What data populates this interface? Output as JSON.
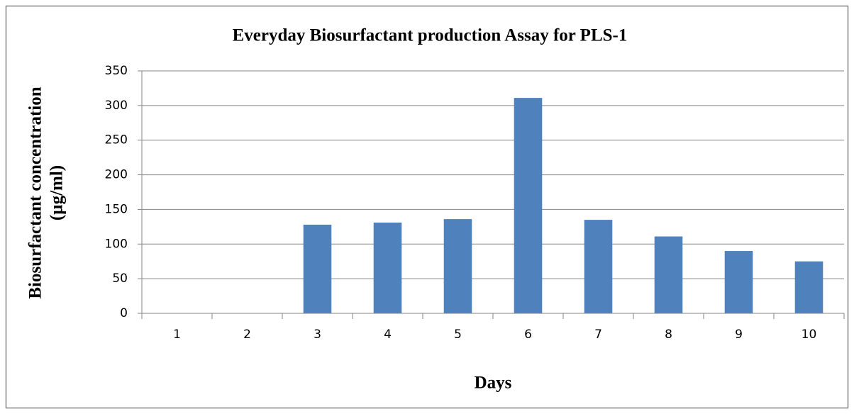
{
  "chart_data": {
    "type": "bar",
    "title": "Everyday Biosurfactant production Assay for PLS-1",
    "x_label": "Days",
    "y_label": [
      "Biosurfactant concentration",
      "(µg/ml)"
    ],
    "categories": [
      "1",
      "2",
      "3",
      "4",
      "5",
      "6",
      "7",
      "8",
      "9",
      "10"
    ],
    "values": [
      0,
      0,
      128,
      131,
      136,
      311,
      135,
      111,
      90,
      75
    ],
    "color": "#4f81bd",
    "ylim": [
      0,
      350
    ],
    "yticks": [
      0,
      50,
      100,
      150,
      200,
      250,
      300,
      350
    ],
    "grid": true
  }
}
